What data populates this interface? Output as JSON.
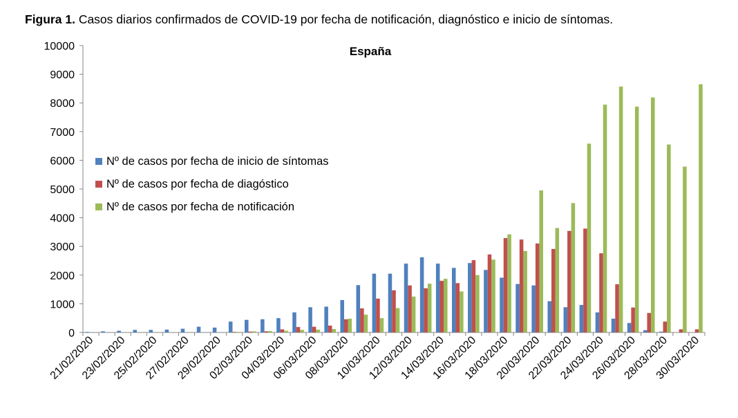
{
  "figure": {
    "label": "Figura 1.",
    "caption": "Casos diarios confirmados de COVID-19 por fecha de notificación, diagnóstico e inicio de síntomas."
  },
  "chart_data": {
    "type": "bar",
    "title": "España",
    "xlabel": "",
    "ylabel": "",
    "ylim": [
      0,
      10000
    ],
    "yticks": [
      0,
      1000,
      2000,
      3000,
      4000,
      5000,
      6000,
      7000,
      8000,
      9000,
      10000
    ],
    "legend_position": "left",
    "categories": [
      "21/02/2020",
      "22/02/2020",
      "23/02/2020",
      "24/02/2020",
      "25/02/2020",
      "26/02/2020",
      "27/02/2020",
      "28/02/2020",
      "29/02/2020",
      "01/03/2020",
      "02/03/2020",
      "03/03/2020",
      "04/03/2020",
      "05/03/2020",
      "06/03/2020",
      "07/03/2020",
      "08/03/2020",
      "09/03/2020",
      "10/03/2020",
      "11/03/2020",
      "12/03/2020",
      "13/03/2020",
      "14/03/2020",
      "15/03/2020",
      "16/03/2020",
      "17/03/2020",
      "18/03/2020",
      "19/03/2020",
      "20/03/2020",
      "21/03/2020",
      "22/03/2020",
      "23/03/2020",
      "24/03/2020",
      "25/03/2020",
      "26/03/2020",
      "27/03/2020",
      "28/03/2020",
      "29/03/2020",
      "30/03/2020"
    ],
    "tick_labels": [
      "21/02/2020",
      "23/02/2020",
      "25/02/2020",
      "27/02/2020",
      "29/02/2020",
      "02/03/2020",
      "04/03/2020",
      "06/03/2020",
      "08/03/2020",
      "10/03/2020",
      "12/03/2020",
      "14/03/2020",
      "16/03/2020",
      "18/03/2020",
      "20/03/2020",
      "22/03/2020",
      "24/03/2020",
      "26/03/2020",
      "28/03/2020",
      "30/03/2020"
    ],
    "series": [
      {
        "name": "Nº de casos por fecha de inicio de síntomas",
        "color": "#4F81BD",
        "values": [
          20,
          40,
          60,
          90,
          90,
          100,
          130,
          200,
          170,
          380,
          440,
          460,
          500,
          700,
          880,
          900,
          1130,
          1650,
          2050,
          2050,
          2400,
          2620,
          2400,
          2250,
          2420,
          2180,
          1910,
          1690,
          1640,
          1090,
          880,
          960,
          700,
          480,
          330,
          80,
          30,
          0,
          0
        ]
      },
      {
        "name": "Nº de casos por fecha de diagóstico",
        "color": "#C0504D",
        "values": [
          0,
          0,
          0,
          0,
          0,
          0,
          0,
          0,
          0,
          20,
          30,
          40,
          110,
          190,
          200,
          240,
          460,
          840,
          1180,
          1470,
          1640,
          1540,
          1800,
          1720,
          2520,
          2720,
          3290,
          3240,
          3100,
          2910,
          3540,
          3620,
          2760,
          1680,
          870,
          680,
          380,
          110,
          110
        ]
      },
      {
        "name": "Nº de casos por fecha de notificación",
        "color": "#9BBB59",
        "values": [
          0,
          0,
          0,
          0,
          0,
          0,
          0,
          0,
          0,
          20,
          40,
          50,
          60,
          90,
          100,
          120,
          480,
          620,
          500,
          850,
          1250,
          1700,
          1870,
          1430,
          2000,
          2540,
          3420,
          2840,
          4950,
          3640,
          4510,
          6580,
          7940,
          8570,
          7870,
          8190,
          6550,
          5780,
          8650
        ]
      }
    ]
  }
}
